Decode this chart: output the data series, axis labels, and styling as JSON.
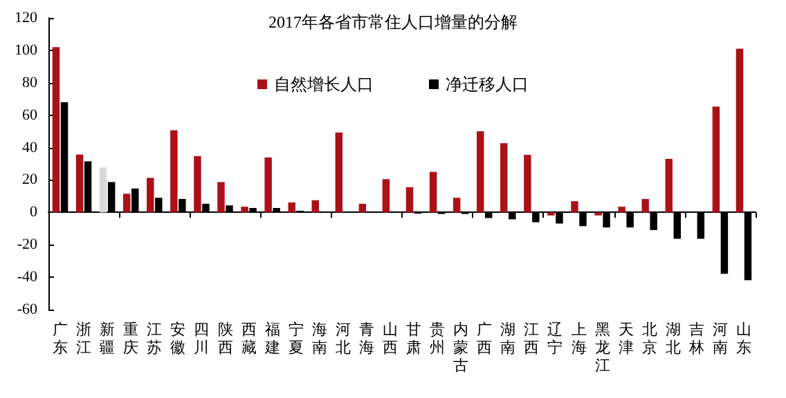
{
  "chart_data": {
    "type": "bar",
    "title": "2017年各省市常住人口增量的分解",
    "categories": [
      "广东",
      "浙江",
      "新疆",
      "重庆",
      "江苏",
      "安徽",
      "四川",
      "陕西",
      "西藏",
      "福建",
      "宁夏",
      "海南",
      "河北",
      "青海",
      "山西",
      "甘肃",
      "贵州",
      "内蒙古",
      "广西",
      "湖南",
      "江西",
      "辽宁",
      "上海",
      "黑龙江",
      "天津",
      "北京",
      "湖北",
      "吉林",
      "河南",
      "山东"
    ],
    "series": [
      {
        "name": "自然增长人口",
        "color": "#ab1218",
        "colors": [
          "#ab1218",
          "#ab1218",
          "#d9d9d9",
          "#ab1218",
          "#ab1218",
          "#ab1218",
          "#ab1218",
          "#ab1218",
          "#ab1218",
          "#ab1218",
          "#ab1218",
          "#ab1218",
          "#ab1218",
          "#ab1218",
          "#ab1218",
          "#ab1218",
          "#ab1218",
          "#ab1218",
          "#ab1218",
          "#ab1218",
          "#ab1218",
          "#ab1218",
          "#ab1218",
          "#ab1218",
          "#ab1218",
          "#ab1218",
          "#ab1218",
          "#ab1218",
          "#ab1218",
          "#ab1218"
        ],
        "values": [
          102,
          35.7,
          27.7,
          11.5,
          21.3,
          50.7,
          34.7,
          18.7,
          3.5,
          33.9,
          6.1,
          7.5,
          49.3,
          5.3,
          20.5,
          15.5,
          25,
          9,
          50,
          42.7,
          35.5,
          -1.9,
          6.9,
          -1.9,
          3.5,
          8.3,
          33,
          0,
          65.3,
          101
        ]
      },
      {
        "name": "净迁移人口",
        "color": "#000000",
        "values": [
          68,
          31.5,
          18.7,
          14.7,
          9,
          8.3,
          5.3,
          4.3,
          2.7,
          2.7,
          1,
          0,
          0,
          0,
          0,
          -0.8,
          -1,
          -1,
          -3.5,
          -4.3,
          -6.1,
          -6.9,
          -8.5,
          -9.3,
          -9.3,
          -10.9,
          -16.3,
          -16.3,
          -37.9,
          -41.9
        ]
      }
    ],
    "ylim": [
      -60,
      120
    ],
    "yticks": [
      -60,
      -40,
      -20,
      0,
      20,
      40,
      60,
      80,
      100,
      120
    ],
    "legend": "top"
  }
}
